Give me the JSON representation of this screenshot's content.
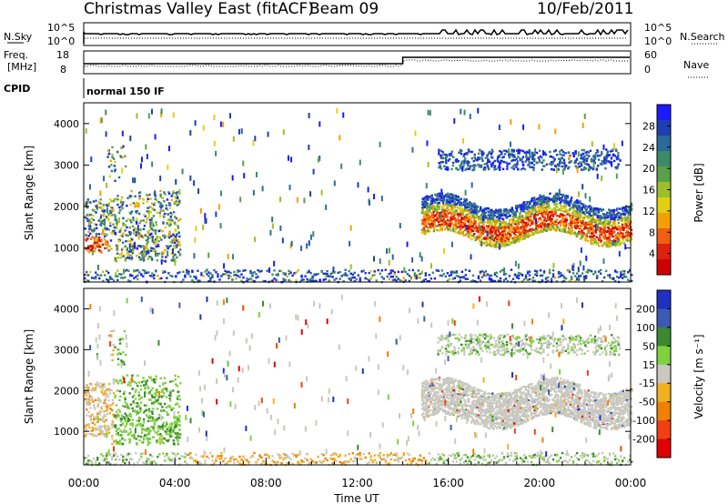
{
  "header": {
    "site_title": "Christmas Valley East (fitACF)",
    "beam": "Beam 09",
    "date": "10/Feb/2011"
  },
  "panels": {
    "nsky": {
      "left_label": "N.Sky",
      "left_ticks": [
        "10^5",
        "10^0"
      ],
      "right_label": "N.Search",
      "right_ticks": [
        "10^5",
        "10^0"
      ]
    },
    "freq": {
      "left_label_1": "Freq.",
      "left_label_2": "[MHz]",
      "left_ticks": [
        "18",
        "8"
      ],
      "right_label": "Nave",
      "right_ticks": [
        "60",
        "0"
      ]
    },
    "cpid": {
      "label": "CPID",
      "value": "normal 150 IF"
    }
  },
  "chart_data": [
    {
      "type": "heatmap",
      "name": "power",
      "ylabel": "Slant Range [km]",
      "yticks": [
        1000,
        2000,
        3000,
        4000
      ],
      "ylim": [
        180,
        4500
      ],
      "xlim": [
        0,
        24
      ],
      "colorbar_label": "Power [dB]",
      "colorbar_ticks": [
        "28",
        "24",
        "20",
        "16",
        "12",
        "8",
        "4"
      ],
      "colors": [
        "#1a1aff",
        "#1e3fb4",
        "#2a6a9a",
        "#3c8a68",
        "#5aa04a",
        "#9dbf2a",
        "#e0d010",
        "#f2a000",
        "#f06010",
        "#e02010",
        "#d00000"
      ]
    },
    {
      "type": "heatmap",
      "name": "velocity",
      "ylabel": "Slant Range [km]",
      "yticks": [
        1000,
        2000,
        3000,
        4000
      ],
      "ylim": [
        180,
        4500
      ],
      "xlim": [
        0,
        24
      ],
      "xticks": [
        "00:00",
        "04:00",
        "08:00",
        "12:00",
        "16:00",
        "20:00",
        "00:00"
      ],
      "xlabel": "Time UT",
      "colorbar_label": "Velocity [m s⁻¹]",
      "colorbar_ticks": [
        "200",
        "100",
        "50",
        "15",
        "-15",
        "-50",
        "-100",
        "-200"
      ],
      "colors": [
        "#2030c0",
        "#3c5ab4",
        "#3c8a30",
        "#80d040",
        "#c8c8c0",
        "#f0b020",
        "#f08000",
        "#f04010",
        "#e00000"
      ]
    }
  ]
}
